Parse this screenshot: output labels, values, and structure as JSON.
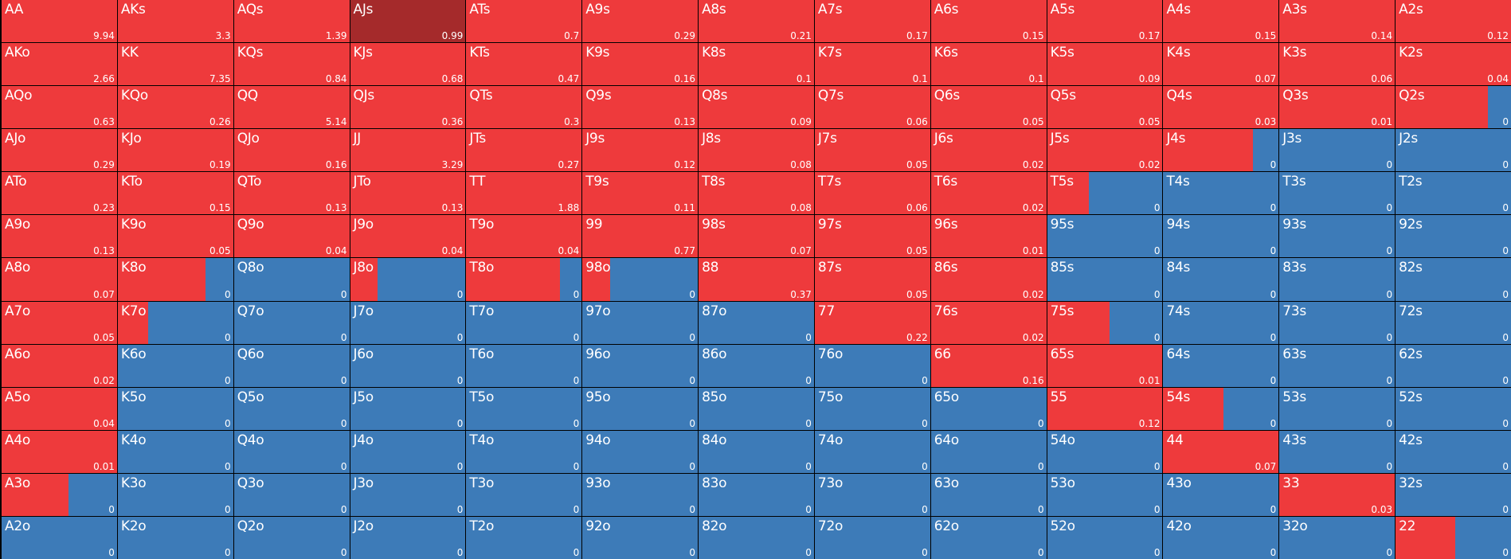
{
  "colors": {
    "raise": "#ee3a3c",
    "fold": "#3d7bb8",
    "selected": "#a52a2b",
    "grid": "#000000"
  },
  "selected_hand": "AJs",
  "rows": [
    [
      [
        "AA",
        "9.94",
        1
      ],
      [
        "AKs",
        "3.3",
        1
      ],
      [
        "AQs",
        "1.39",
        1
      ],
      [
        "AJs",
        "0.99",
        1
      ],
      [
        "ATs",
        "0.7",
        1
      ],
      [
        "A9s",
        "0.29",
        1
      ],
      [
        "A8s",
        "0.21",
        1
      ],
      [
        "A7s",
        "0.17",
        1
      ],
      [
        "A6s",
        "0.15",
        1
      ],
      [
        "A5s",
        "0.17",
        1
      ],
      [
        "A4s",
        "0.15",
        1
      ],
      [
        "A3s",
        "0.14",
        1
      ],
      [
        "A2s",
        "0.12",
        1
      ]
    ],
    [
      [
        "AKo",
        "2.66",
        1
      ],
      [
        "KK",
        "7.35",
        1
      ],
      [
        "KQs",
        "0.84",
        1
      ],
      [
        "KJs",
        "0.68",
        1
      ],
      [
        "KTs",
        "0.47",
        1
      ],
      [
        "K9s",
        "0.16",
        1
      ],
      [
        "K8s",
        "0.1",
        1
      ],
      [
        "K7s",
        "0.1",
        1
      ],
      [
        "K6s",
        "0.1",
        1
      ],
      [
        "K5s",
        "0.09",
        1
      ],
      [
        "K4s",
        "0.07",
        1
      ],
      [
        "K3s",
        "0.06",
        1
      ],
      [
        "K2s",
        "0.04",
        1
      ]
    ],
    [
      [
        "AQo",
        "0.63",
        1
      ],
      [
        "KQo",
        "0.26",
        1
      ],
      [
        "QQ",
        "5.14",
        1
      ],
      [
        "QJs",
        "0.36",
        1
      ],
      [
        "QTs",
        "0.3",
        1
      ],
      [
        "Q9s",
        "0.13",
        1
      ],
      [
        "Q8s",
        "0.09",
        1
      ],
      [
        "Q7s",
        "0.06",
        1
      ],
      [
        "Q6s",
        "0.05",
        1
      ],
      [
        "Q5s",
        "0.05",
        1
      ],
      [
        "Q4s",
        "0.03",
        1
      ],
      [
        "Q3s",
        "0.01",
        1
      ],
      [
        "Q2s",
        "0",
        0.8
      ]
    ],
    [
      [
        "AJo",
        "0.29",
        1
      ],
      [
        "KJo",
        "0.19",
        1
      ],
      [
        "QJo",
        "0.16",
        1
      ],
      [
        "JJ",
        "3.29",
        1
      ],
      [
        "JTs",
        "0.27",
        1
      ],
      [
        "J9s",
        "0.12",
        1
      ],
      [
        "J8s",
        "0.08",
        1
      ],
      [
        "J7s",
        "0.05",
        1
      ],
      [
        "J6s",
        "0.02",
        1
      ],
      [
        "J5s",
        "0.02",
        1
      ],
      [
        "J4s",
        "0",
        0.78
      ],
      [
        "J3s",
        "0",
        0
      ],
      [
        "J2s",
        "0",
        0
      ]
    ],
    [
      [
        "ATo",
        "0.23",
        1
      ],
      [
        "KTo",
        "0.15",
        1
      ],
      [
        "QTo",
        "0.13",
        1
      ],
      [
        "JTo",
        "0.13",
        1
      ],
      [
        "TT",
        "1.88",
        1
      ],
      [
        "T9s",
        "0.11",
        1
      ],
      [
        "T8s",
        "0.08",
        1
      ],
      [
        "T7s",
        "0.06",
        1
      ],
      [
        "T6s",
        "0.02",
        1
      ],
      [
        "T5s",
        "0",
        0.36
      ],
      [
        "T4s",
        "0",
        0
      ],
      [
        "T3s",
        "0",
        0
      ],
      [
        "T2s",
        "0",
        0
      ]
    ],
    [
      [
        "A9o",
        "0.13",
        1
      ],
      [
        "K9o",
        "0.05",
        1
      ],
      [
        "Q9o",
        "0.04",
        1
      ],
      [
        "J9o",
        "0.04",
        1
      ],
      [
        "T9o",
        "0.04",
        1
      ],
      [
        "99",
        "0.77",
        1
      ],
      [
        "98s",
        "0.07",
        1
      ],
      [
        "97s",
        "0.05",
        1
      ],
      [
        "96s",
        "0.01",
        1
      ],
      [
        "95s",
        "0",
        0
      ],
      [
        "94s",
        "0",
        0
      ],
      [
        "93s",
        "0",
        0
      ],
      [
        "92s",
        "0",
        0
      ]
    ],
    [
      [
        "A8o",
        "0.07",
        1
      ],
      [
        "K8o",
        "0",
        0.76
      ],
      [
        "Q8o",
        "0",
        0
      ],
      [
        "J8o",
        "0",
        0.24
      ],
      [
        "T8o",
        "0",
        0.81
      ],
      [
        "98o",
        "0",
        0.24
      ],
      [
        "88",
        "0.37",
        1
      ],
      [
        "87s",
        "0.05",
        1
      ],
      [
        "86s",
        "0.02",
        1
      ],
      [
        "85s",
        "0",
        0
      ],
      [
        "84s",
        "0",
        0
      ],
      [
        "83s",
        "0",
        0
      ],
      [
        "82s",
        "0",
        0
      ]
    ],
    [
      [
        "A7o",
        "0.05",
        1
      ],
      [
        "K7o",
        "0",
        0.26
      ],
      [
        "Q7o",
        "0",
        0
      ],
      [
        "J7o",
        "0",
        0
      ],
      [
        "T7o",
        "0",
        0
      ],
      [
        "97o",
        "0",
        0
      ],
      [
        "87o",
        "0",
        0
      ],
      [
        "77",
        "0.22",
        1
      ],
      [
        "76s",
        "0.02",
        1
      ],
      [
        "75s",
        "0",
        0.54
      ],
      [
        "74s",
        "0",
        0
      ],
      [
        "73s",
        "0",
        0
      ],
      [
        "72s",
        "0",
        0
      ]
    ],
    [
      [
        "A6o",
        "0.02",
        1
      ],
      [
        "K6o",
        "0",
        0
      ],
      [
        "Q6o",
        "0",
        0
      ],
      [
        "J6o",
        "0",
        0
      ],
      [
        "T6o",
        "0",
        0
      ],
      [
        "96o",
        "0",
        0
      ],
      [
        "86o",
        "0",
        0
      ],
      [
        "76o",
        "0",
        0
      ],
      [
        "66",
        "0.16",
        1
      ],
      [
        "65s",
        "0.01",
        1
      ],
      [
        "64s",
        "0",
        0
      ],
      [
        "63s",
        "0",
        0
      ],
      [
        "62s",
        "0",
        0
      ]
    ],
    [
      [
        "A5o",
        "0.04",
        1
      ],
      [
        "K5o",
        "0",
        0
      ],
      [
        "Q5o",
        "0",
        0
      ],
      [
        "J5o",
        "0",
        0
      ],
      [
        "T5o",
        "0",
        0
      ],
      [
        "95o",
        "0",
        0
      ],
      [
        "85o",
        "0",
        0
      ],
      [
        "75o",
        "0",
        0
      ],
      [
        "65o",
        "0",
        0
      ],
      [
        "55",
        "0.12",
        1
      ],
      [
        "54s",
        "0",
        0.52
      ],
      [
        "53s",
        "0",
        0
      ],
      [
        "52s",
        "0",
        0
      ]
    ],
    [
      [
        "A4o",
        "0.01",
        1
      ],
      [
        "K4o",
        "0",
        0
      ],
      [
        "Q4o",
        "0",
        0
      ],
      [
        "J4o",
        "0",
        0
      ],
      [
        "T4o",
        "0",
        0
      ],
      [
        "94o",
        "0",
        0
      ],
      [
        "84o",
        "0",
        0
      ],
      [
        "74o",
        "0",
        0
      ],
      [
        "64o",
        "0",
        0
      ],
      [
        "54o",
        "0",
        0
      ],
      [
        "44",
        "0.07",
        1
      ],
      [
        "43s",
        "0",
        0
      ],
      [
        "42s",
        "0",
        0
      ]
    ],
    [
      [
        "A3o",
        "0",
        0.58
      ],
      [
        "K3o",
        "0",
        0
      ],
      [
        "Q3o",
        "0",
        0
      ],
      [
        "J3o",
        "0",
        0
      ],
      [
        "T3o",
        "0",
        0
      ],
      [
        "93o",
        "0",
        0
      ],
      [
        "83o",
        "0",
        0
      ],
      [
        "73o",
        "0",
        0
      ],
      [
        "63o",
        "0",
        0
      ],
      [
        "53o",
        "0",
        0
      ],
      [
        "43o",
        "0",
        0
      ],
      [
        "33",
        "0.03",
        1
      ],
      [
        "32s",
        "0",
        0
      ]
    ],
    [
      [
        "A2o",
        "0",
        0
      ],
      [
        "K2o",
        "0",
        0
      ],
      [
        "Q2o",
        "0",
        0
      ],
      [
        "J2o",
        "0",
        0
      ],
      [
        "T2o",
        "0",
        0
      ],
      [
        "92o",
        "0",
        0
      ],
      [
        "82o",
        "0",
        0
      ],
      [
        "72o",
        "0",
        0
      ],
      [
        "62o",
        "0",
        0
      ],
      [
        "52o",
        "0",
        0
      ],
      [
        "42o",
        "0",
        0
      ],
      [
        "32o",
        "0",
        0
      ],
      [
        "22",
        "0",
        0.52
      ]
    ]
  ]
}
